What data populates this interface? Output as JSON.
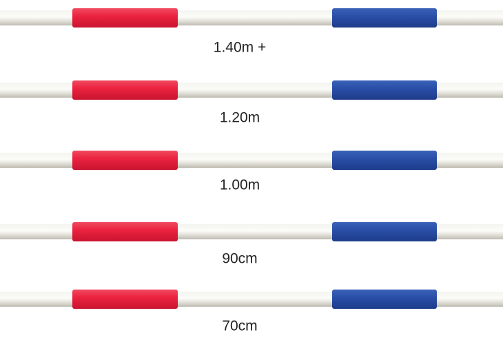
{
  "poles": [
    {
      "label": "1.40m +"
    },
    {
      "label": "1.20m"
    },
    {
      "label": "1.00m"
    },
    {
      "label": "90cm"
    },
    {
      "label": "70cm"
    }
  ]
}
